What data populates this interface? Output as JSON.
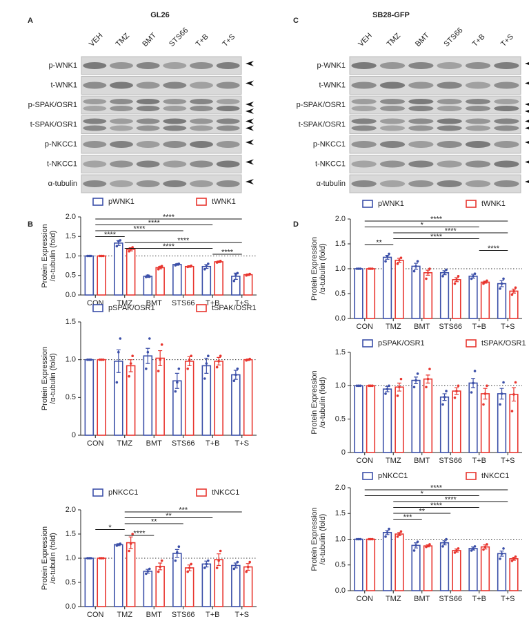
{
  "panels": [
    {
      "letter": "A",
      "title": "GL26",
      "lanes": [
        "VEH",
        "TMZ",
        "BMT",
        "STS66",
        "T+B",
        "T+S"
      ],
      "rows": [
        "p-WNK1",
        "t-WNK1",
        "p-SPAK/OSR1",
        "t-SPAK/OSR1",
        "p-NKCC1",
        "t-NKCC1",
        "α-tubulin"
      ]
    },
    {
      "letter": "C",
      "title": "SB28-GFP",
      "lanes": [
        "VEH",
        "TMZ",
        "BMT",
        "STS66",
        "T+B",
        "T+S"
      ],
      "rows": [
        "p-WNK1",
        "t-WNK1",
        "p-SPAK/OSR1",
        "t-SPAK/OSR1",
        "p-NKCC1",
        "t-NKCC1",
        "α-tubulin"
      ]
    }
  ],
  "chart_panels": [
    "B",
    "D"
  ],
  "chart_data": [
    {
      "type": "bar",
      "ylabel": [
        "Protein Expression",
        "/α-tubulin (fold)"
      ],
      "categories": [
        "CON",
        "TMZ",
        "BMT",
        "STS66",
        "T+B",
        "T+S"
      ],
      "ylim": [
        0,
        2
      ],
      "yticks": [
        {
          "value": 0,
          "label": "0.0"
        },
        0.5,
        {
          "value": 1,
          "label": "1.0"
        },
        1.5,
        {
          "value": 2,
          "label": "2.0"
        }
      ],
      "ref_line": 1,
      "series": [
        {
          "name": "pWNK1",
          "color": "#3b4fa8",
          "values": [
            1,
            1.33,
            0.48,
            0.78,
            0.73,
            0.48
          ],
          "errors": [
            0,
            0.06,
            0.03,
            0.02,
            0.05,
            0.08
          ],
          "points": [
            [
              1,
              1,
              1
            ],
            [
              1.25,
              1.38,
              1.4
            ],
            [
              0.46,
              0.5,
              0.47
            ],
            [
              0.76,
              0.79,
              0.8
            ],
            [
              0.66,
              0.74,
              0.8
            ],
            [
              0.36,
              0.52,
              0.56
            ]
          ]
        },
        {
          "name": "tWNK1",
          "color": "#e8352e",
          "values": [
            1,
            1.17,
            0.7,
            0.73,
            0.85,
            0.52
          ],
          "errors": [
            0,
            0.04,
            0.03,
            0.02,
            0.02,
            0.02
          ],
          "points": [
            [
              1,
              1,
              1
            ],
            [
              1.12,
              1.18,
              1.22
            ],
            [
              0.66,
              0.72,
              0.74
            ],
            [
              0.72,
              0.73,
              0.75
            ],
            [
              0.83,
              0.85,
              0.87
            ],
            [
              0.5,
              0.52,
              0.54
            ]
          ]
        }
      ],
      "brackets": [
        {
          "from": "CON",
          "to": "T+S",
          "label": "****"
        },
        {
          "from": "CON",
          "to": "T+B",
          "label": "****"
        },
        {
          "from": "CON",
          "to": "STS66",
          "label": "****"
        },
        {
          "from": "CON",
          "to": "TMZ",
          "label": "****"
        },
        {
          "from": "TMZ",
          "to": "T+S",
          "label": "****"
        },
        {
          "from": "TMZ",
          "to": "T+B",
          "label": "****"
        },
        {
          "from": "T+B",
          "to": "T+S",
          "label": "****"
        }
      ]
    },
    {
      "type": "bar",
      "ylabel": [
        "Protein Expression",
        "/α-tubulin (fold)"
      ],
      "categories": [
        "CON",
        "TMZ",
        "BMT",
        "STS66",
        "T+B",
        "T+S"
      ],
      "ylim": [
        0,
        1.5
      ],
      "yticks": [
        {
          "value": 0,
          "label": "0"
        },
        0.5,
        {
          "value": 1,
          "label": "1.0"
        },
        1.5
      ],
      "ref_line": 1,
      "series": [
        {
          "name": "pSPAK/OSR1",
          "color": "#3b4fa8",
          "values": [
            1,
            0.98,
            1.05,
            0.72,
            0.92,
            0.8
          ],
          "errors": [
            0,
            0.15,
            0.1,
            0.1,
            0.1,
            0.06
          ],
          "points": [
            [
              1,
              1,
              1
            ],
            [
              0.7,
              1.1,
              1.28
            ],
            [
              0.88,
              1.1,
              1.28
            ],
            [
              0.58,
              0.7,
              0.88
            ],
            [
              0.75,
              0.95,
              1.05
            ],
            [
              0.72,
              0.8,
              0.88
            ]
          ]
        },
        {
          "name": "tSPAK/OSR1",
          "color": "#e8352e",
          "values": [
            1,
            0.92,
            1.02,
            0.98,
            0.98,
            1
          ],
          "errors": [
            0,
            0.08,
            0.1,
            0.06,
            0.05,
            0.01
          ],
          "points": [
            [
              1,
              1,
              1
            ],
            [
              0.78,
              0.95,
              1.05
            ],
            [
              0.85,
              1,
              1.2
            ],
            [
              0.88,
              1,
              1.05
            ],
            [
              0.9,
              0.98,
              1.05
            ],
            [
              0.99,
              1,
              1.01
            ]
          ]
        }
      ],
      "brackets": []
    },
    {
      "type": "bar",
      "ylabel": [
        "Protein Expression",
        "/α-tubulin (fold)"
      ],
      "categories": [
        "CON",
        "TMZ",
        "BMT",
        "STS66",
        "T+B",
        "T+S"
      ],
      "ylim": [
        0,
        2
      ],
      "yticks": [
        {
          "value": 0,
          "label": "0.0"
        },
        0.5,
        {
          "value": 1,
          "label": "1.0"
        },
        1.5,
        {
          "value": 2,
          "label": "2.0"
        }
      ],
      "ref_line": 1,
      "series": [
        {
          "name": "pNKCC1",
          "color": "#3b4fa8",
          "values": [
            1,
            1.28,
            0.73,
            1.1,
            0.88,
            0.85
          ],
          "errors": [
            0,
            0.02,
            0.04,
            0.08,
            0.06,
            0.05
          ],
          "points": [
            [
              1,
              1,
              1
            ],
            [
              1.26,
              1.28,
              1.3
            ],
            [
              0.68,
              0.73,
              0.78
            ],
            [
              0.95,
              1.12,
              1.24
            ],
            [
              0.8,
              0.88,
              0.95
            ],
            [
              0.78,
              0.85,
              0.92
            ]
          ]
        },
        {
          "name": "tNKCC1",
          "color": "#e8352e",
          "values": [
            1,
            1.32,
            0.83,
            0.8,
            0.97,
            0.82
          ],
          "errors": [
            0,
            0.12,
            0.07,
            0.06,
            0.12,
            0.07
          ],
          "points": [
            [
              1,
              1,
              1
            ],
            [
              1.15,
              1.3,
              1.5
            ],
            [
              0.72,
              0.82,
              0.95
            ],
            [
              0.72,
              0.8,
              0.88
            ],
            [
              0.8,
              0.95,
              1.15
            ],
            [
              0.72,
              0.82,
              0.92
            ]
          ]
        }
      ],
      "brackets": [
        {
          "from": "TMZ",
          "to": "T+S",
          "label": "***"
        },
        {
          "from": "TMZ",
          "to": "T+B",
          "label": "**"
        },
        {
          "from": "TMZ",
          "to": "STS66",
          "label": "**"
        },
        {
          "from": "CON",
          "to": "TMZ",
          "label": "*"
        },
        {
          "from": "TMZ",
          "to": "BMT",
          "label": "****"
        }
      ]
    },
    {
      "type": "bar",
      "ylabel": [
        "Protein Expression",
        "/α-tubulin (fold)"
      ],
      "categories": [
        "CON",
        "TMZ",
        "BMT",
        "STS66",
        "T+B",
        "T+S"
      ],
      "ylim": [
        0,
        2
      ],
      "yticks": [
        {
          "value": 0,
          "label": "0.0"
        },
        0.5,
        {
          "value": 1,
          "label": "1.0"
        },
        1.5,
        {
          "value": 2,
          "label": "2.0"
        }
      ],
      "ref_line": 1,
      "series": [
        {
          "name": "pWNK1",
          "color": "#3b4fa8",
          "values": [
            1,
            1.23,
            1.05,
            0.92,
            0.85,
            0.7
          ],
          "errors": [
            0,
            0.04,
            0.06,
            0.04,
            0.04,
            0.06
          ],
          "points": [
            [
              1,
              1,
              1
            ],
            [
              1.15,
              1.25,
              1.3
            ],
            [
              0.95,
              1.05,
              1.15
            ],
            [
              0.85,
              0.92,
              0.98
            ],
            [
              0.8,
              0.85,
              0.9
            ],
            [
              0.6,
              0.7,
              0.8
            ]
          ]
        },
        {
          "name": "tWNK1",
          "color": "#e8352e",
          "values": [
            1,
            1.17,
            0.92,
            0.78,
            0.73,
            0.55
          ],
          "errors": [
            0,
            0.04,
            0.05,
            0.04,
            0.02,
            0.04
          ],
          "points": [
            [
              1,
              1,
              1
            ],
            [
              1.1,
              1.17,
              1.22
            ],
            [
              0.8,
              0.92,
              1
            ],
            [
              0.7,
              0.78,
              0.85
            ],
            [
              0.7,
              0.73,
              0.76
            ],
            [
              0.48,
              0.55,
              0.62
            ]
          ]
        }
      ],
      "brackets": [
        {
          "from": "CON",
          "to": "T+S",
          "label": "****"
        },
        {
          "from": "CON",
          "to": "T+B",
          "label": "*"
        },
        {
          "from": "TMZ",
          "to": "T+S",
          "label": "****"
        },
        {
          "from": "TMZ",
          "to": "T+B",
          "label": "****"
        },
        {
          "from": "CON",
          "to": "TMZ",
          "label": "**"
        },
        {
          "from": "T+B",
          "to": "T+S",
          "label": "****"
        }
      ]
    },
    {
      "type": "bar",
      "ylabel": [
        "Protein Expression",
        "/α-tubulin (fold)"
      ],
      "categories": [
        "CON",
        "TMZ",
        "BMT",
        "STS66",
        "T+B",
        "T+S"
      ],
      "ylim": [
        0,
        1.5
      ],
      "yticks": [
        {
          "value": 0,
          "label": "0"
        },
        0.5,
        {
          "value": 1,
          "label": "1.0"
        },
        1.5
      ],
      "ref_line": 1,
      "series": [
        {
          "name": "pSPAK/OSR1",
          "color": "#3b4fa8",
          "values": [
            1,
            0.95,
            1.08,
            0.83,
            1.04,
            0.88
          ],
          "errors": [
            0,
            0.04,
            0.05,
            0.05,
            0.07,
            0.08
          ],
          "points": [
            [
              1,
              1,
              1
            ],
            [
              0.88,
              0.95,
              1
            ],
            [
              0.98,
              1.08,
              1.18
            ],
            [
              0.72,
              0.83,
              0.92
            ],
            [
              0.9,
              1.04,
              1.22
            ],
            [
              0.72,
              0.88,
              1.05
            ]
          ]
        },
        {
          "name": "tSPAK/OSR1",
          "color": "#e8352e",
          "values": [
            1,
            0.98,
            1.1,
            0.92,
            0.88,
            0.87
          ],
          "errors": [
            0,
            0.06,
            0.06,
            0.05,
            0.08,
            0.1
          ],
          "points": [
            [
              1,
              1,
              1
            ],
            [
              0.85,
              0.98,
              1.1
            ],
            [
              0.98,
              1.1,
              1.25
            ],
            [
              0.82,
              0.92,
              1
            ],
            [
              0.72,
              0.88,
              1
            ],
            [
              0.62,
              0.87,
              1.05
            ]
          ]
        }
      ],
      "brackets": []
    },
    {
      "type": "bar",
      "ylabel": [
        "Protein Expression",
        "/α-tubulin (fold)"
      ],
      "categories": [
        "CON",
        "TMZ",
        "BMT",
        "STS66",
        "T+B",
        "T+S"
      ],
      "ylim": [
        0,
        2
      ],
      "yticks": [
        {
          "value": 0,
          "label": "0.0"
        },
        0.5,
        {
          "value": 1,
          "label": "1.0"
        },
        1.5,
        {
          "value": 2,
          "label": "2.0"
        }
      ],
      "ref_line": 1,
      "series": [
        {
          "name": "pNKCC1",
          "color": "#3b4fa8",
          "values": [
            1,
            1.13,
            0.88,
            0.93,
            0.82,
            0.72
          ],
          "errors": [
            0,
            0.04,
            0.05,
            0.04,
            0.03,
            0.05
          ],
          "points": [
            [
              1,
              1,
              1
            ],
            [
              1.05,
              1.13,
              1.2
            ],
            [
              0.78,
              0.88,
              0.95
            ],
            [
              0.86,
              0.93,
              1
            ],
            [
              0.78,
              0.82,
              0.86
            ],
            [
              0.62,
              0.72,
              0.82
            ]
          ]
        },
        {
          "name": "tNKCC1",
          "color": "#e8352e",
          "values": [
            1,
            1.1,
            0.87,
            0.78,
            0.85,
            0.62
          ],
          "errors": [
            0,
            0.03,
            0.02,
            0.03,
            0.04,
            0.03
          ],
          "points": [
            [
              1,
              1,
              1
            ],
            [
              1.05,
              1.1,
              1.15
            ],
            [
              0.85,
              0.87,
              0.9
            ],
            [
              0.74,
              0.78,
              0.82
            ],
            [
              0.8,
              0.85,
              0.9
            ],
            [
              0.58,
              0.62,
              0.66
            ]
          ]
        }
      ],
      "brackets": [
        {
          "from": "CON",
          "to": "T+S",
          "label": "****"
        },
        {
          "from": "CON",
          "to": "T+B",
          "label": "*"
        },
        {
          "from": "TMZ",
          "to": "T+S",
          "label": "****"
        },
        {
          "from": "TMZ",
          "to": "T+B",
          "label": "****"
        },
        {
          "from": "TMZ",
          "to": "STS66",
          "label": "**"
        },
        {
          "from": "TMZ",
          "to": "BMT",
          "label": "***"
        }
      ]
    }
  ]
}
